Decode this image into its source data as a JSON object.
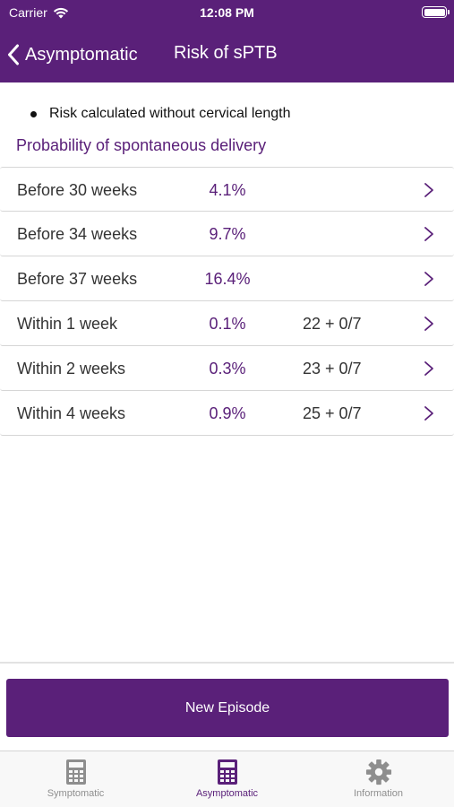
{
  "status_bar": {
    "carrier": "Carrier",
    "time": "12:08 PM"
  },
  "nav": {
    "back_label": "Asymptomatic",
    "title": "Risk of sPTB"
  },
  "note": "Risk calculated without cervical length",
  "section_title": "Probability of spontaneous delivery",
  "rows": [
    {
      "label": "Before 30 weeks",
      "probability": "4.1%",
      "gestation": ""
    },
    {
      "label": "Before 34 weeks",
      "probability": "9.7%",
      "gestation": ""
    },
    {
      "label": "Before 37 weeks",
      "probability": "16.4%",
      "gestation": ""
    },
    {
      "label": "Within 1 week",
      "probability": "0.1%",
      "gestation": "22 + 0/7"
    },
    {
      "label": "Within 2 weeks",
      "probability": "0.3%",
      "gestation": "23 + 0/7"
    },
    {
      "label": "Within 4 weeks",
      "probability": "0.9%",
      "gestation": "25 + 0/7"
    }
  ],
  "new_episode_label": "New Episode",
  "tabs": [
    {
      "label": "Symptomatic",
      "icon": "calculator-icon",
      "active": false
    },
    {
      "label": "Asymptomatic",
      "icon": "calculator-icon",
      "active": true
    },
    {
      "label": "Information",
      "icon": "gear-icon",
      "active": false
    }
  ],
  "colors": {
    "brand": "#5a2079",
    "inactive_tab": "#8e8e8e"
  }
}
